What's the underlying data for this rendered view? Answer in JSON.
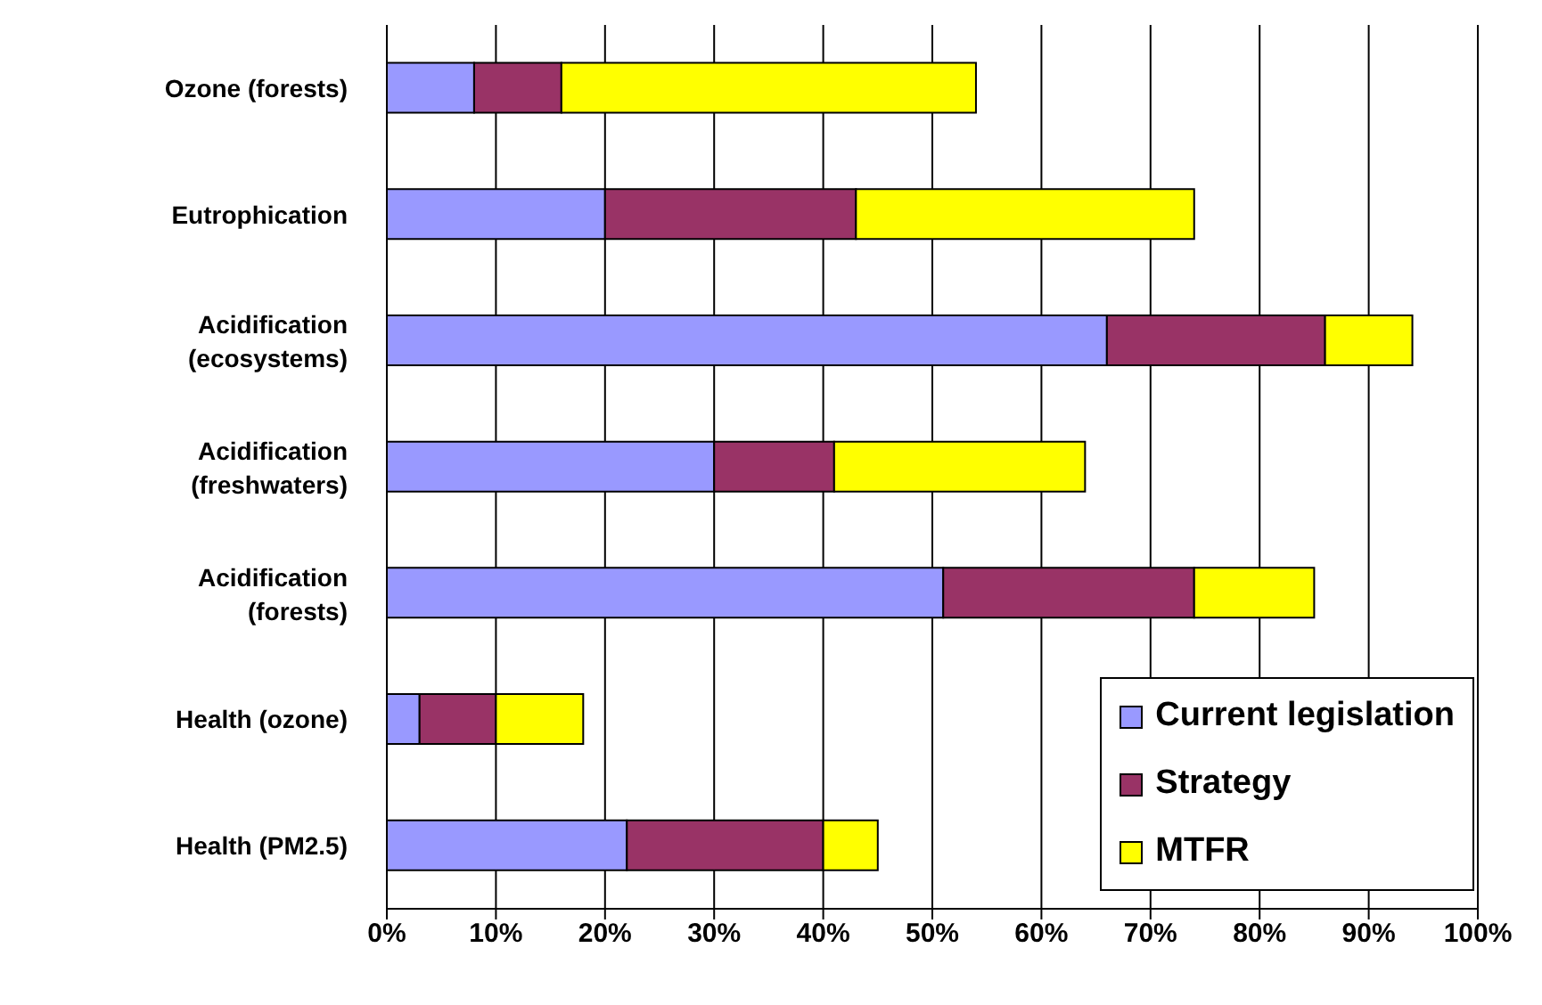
{
  "chart_data": {
    "type": "bar",
    "orientation": "horizontal",
    "stacked": true,
    "categories": [
      "Ozone (forests)",
      "Eutrophication",
      "Acidification (ecosystems)",
      "Acidification (freshwaters)",
      "Acidification (forests)",
      "Health (ozone)",
      "Health (PM2.5)"
    ],
    "series": [
      {
        "name": "Current legislation",
        "color": "#9999ff",
        "values": [
          8,
          20,
          66,
          30,
          51,
          3,
          22
        ]
      },
      {
        "name": "Strategy",
        "color": "#993366",
        "values": [
          8,
          23,
          20,
          11,
          23,
          7,
          18
        ]
      },
      {
        "name": "MTFR",
        "color": "#ffff00",
        "values": [
          38,
          31,
          8,
          23,
          11,
          8,
          5
        ]
      }
    ],
    "xlim": [
      0,
      100
    ],
    "xticks": [
      {
        "value": 0,
        "label": "0%"
      },
      {
        "value": 10,
        "label": "10%"
      },
      {
        "value": 20,
        "label": "20%"
      },
      {
        "value": 30,
        "label": "30%"
      },
      {
        "value": 40,
        "label": "40%"
      },
      {
        "value": 50,
        "label": "50%"
      },
      {
        "value": 60,
        "label": "60%"
      },
      {
        "value": 70,
        "label": "70%"
      },
      {
        "value": 80,
        "label": "80%"
      },
      {
        "value": 90,
        "label": "90%"
      },
      {
        "value": 100,
        "label": "100%"
      }
    ],
    "grid": "x",
    "legend": "bottom right"
  }
}
